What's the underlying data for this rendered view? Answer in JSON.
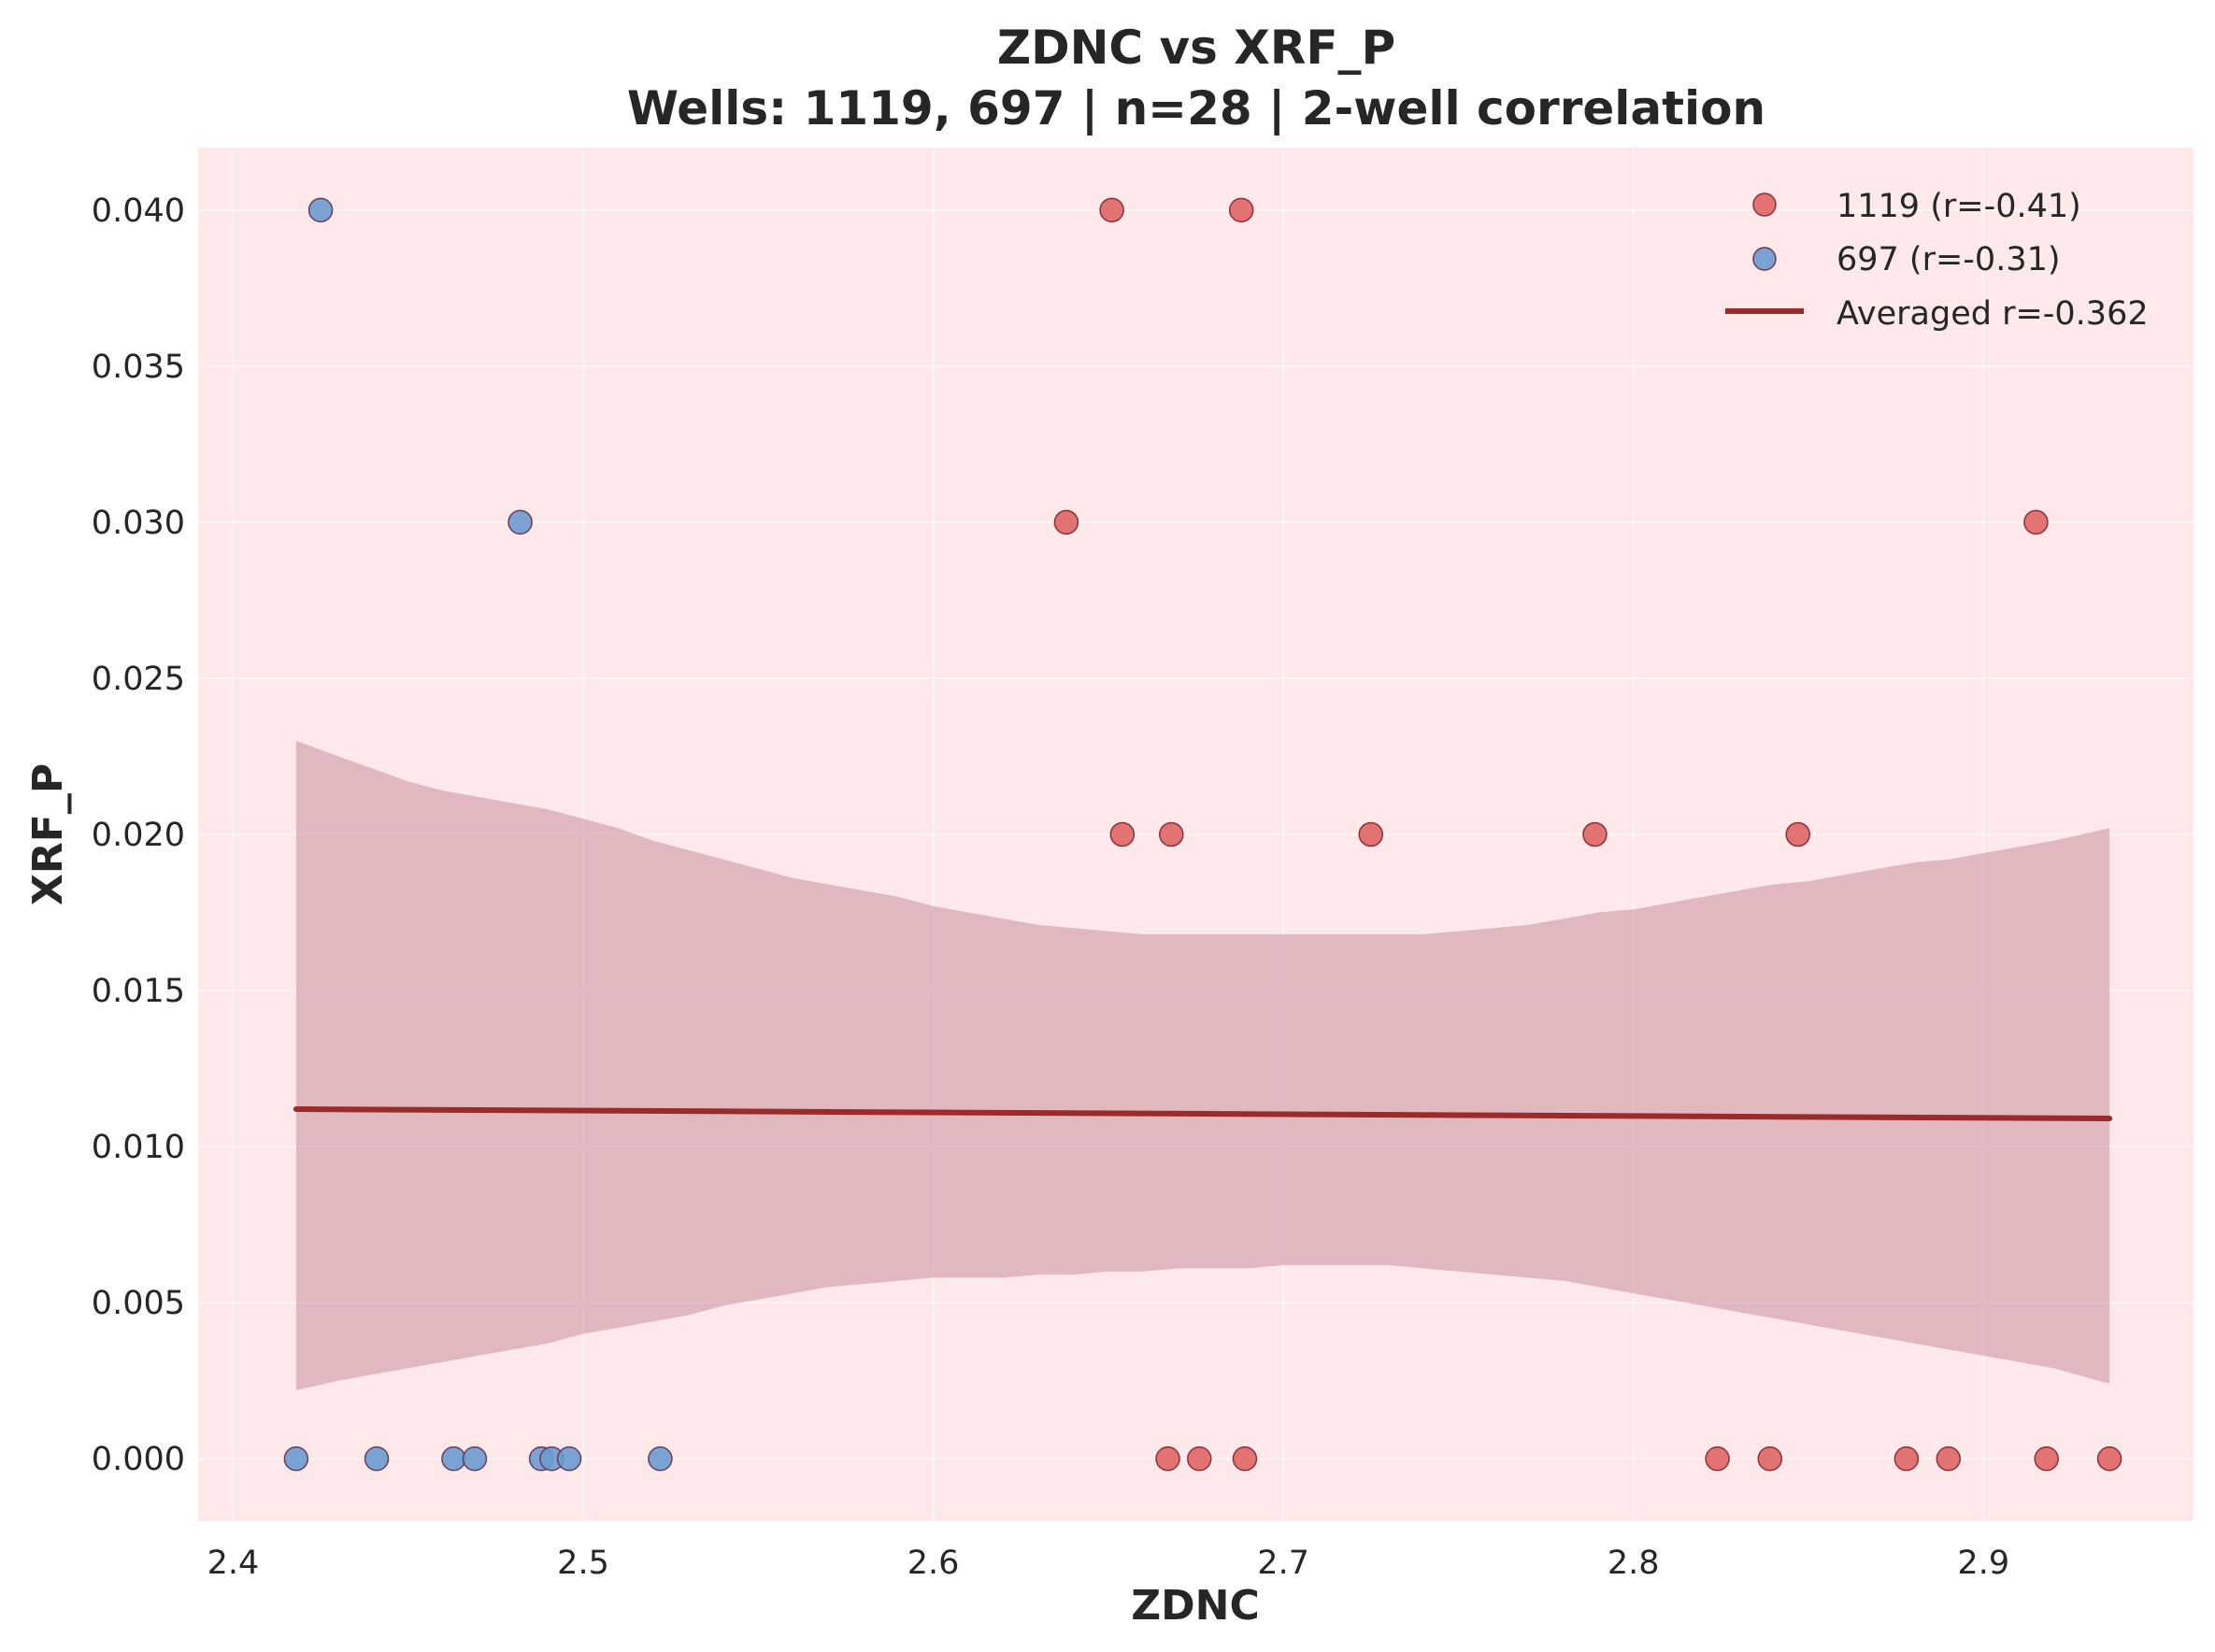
{
  "chart_data": {
    "type": "scatter",
    "title": "ZDNC vs XRF_P",
    "subtitle": "Wells: 1119, 697 | n=28 | 2-well correlation",
    "xlabel": "ZDNC",
    "ylabel": "XRF_P",
    "xlim": [
      2.39,
      2.96
    ],
    "ylim": [
      -0.002,
      0.042
    ],
    "x_ticks": [
      "2.4",
      "2.5",
      "2.6",
      "2.7",
      "2.8",
      "2.9"
    ],
    "x_tick_values": [
      2.4,
      2.5,
      2.6,
      2.7,
      2.8,
      2.9
    ],
    "y_ticks": [
      "0.000",
      "0.005",
      "0.010",
      "0.015",
      "0.020",
      "0.025",
      "0.030",
      "0.035",
      "0.040"
    ],
    "y_tick_values": [
      0.0,
      0.005,
      0.01,
      0.015,
      0.02,
      0.025,
      0.03,
      0.035,
      0.04
    ],
    "grid": true,
    "legend_position": "top-right",
    "background_color": "#fde8ea",
    "series": [
      {
        "name": "1119 (r=-0.41)",
        "color": "#e06666",
        "edge_color": "#8b2e3a",
        "points": [
          {
            "x": 2.651,
            "y": 0.04
          },
          {
            "x": 2.688,
            "y": 0.04
          },
          {
            "x": 2.638,
            "y": 0.03
          },
          {
            "x": 2.915,
            "y": 0.03
          },
          {
            "x": 2.654,
            "y": 0.02
          },
          {
            "x": 2.668,
            "y": 0.02
          },
          {
            "x": 2.725,
            "y": 0.02
          },
          {
            "x": 2.789,
            "y": 0.02
          },
          {
            "x": 2.847,
            "y": 0.02
          },
          {
            "x": 2.667,
            "y": 0.0
          },
          {
            "x": 2.676,
            "y": 0.0
          },
          {
            "x": 2.689,
            "y": 0.0
          },
          {
            "x": 2.824,
            "y": 0.0
          },
          {
            "x": 2.839,
            "y": 0.0
          },
          {
            "x": 2.878,
            "y": 0.0
          },
          {
            "x": 2.89,
            "y": 0.0
          },
          {
            "x": 2.918,
            "y": 0.0
          },
          {
            "x": 2.936,
            "y": 0.0
          }
        ]
      },
      {
        "name": "697 (r=-0.31)",
        "color": "#6b9bd1",
        "edge_color": "#6a3a55",
        "points": [
          {
            "x": 2.425,
            "y": 0.04
          },
          {
            "x": 2.482,
            "y": 0.03
          },
          {
            "x": 2.418,
            "y": 0.0
          },
          {
            "x": 2.441,
            "y": 0.0
          },
          {
            "x": 2.463,
            "y": 0.0
          },
          {
            "x": 2.469,
            "y": 0.0
          },
          {
            "x": 2.488,
            "y": 0.0
          },
          {
            "x": 2.491,
            "y": 0.0
          },
          {
            "x": 2.496,
            "y": 0.0
          },
          {
            "x": 2.522,
            "y": 0.0
          }
        ]
      }
    ],
    "fit_line": {
      "name": "Averaged r=-0.362",
      "color": "#9b2a2a",
      "x": [
        2.418,
        2.936
      ],
      "y": [
        0.0112,
        0.0109
      ]
    },
    "confidence_band": {
      "color": "#d8a8b0",
      "x": [
        2.418,
        2.43,
        2.44,
        2.45,
        2.46,
        2.47,
        2.48,
        2.49,
        2.5,
        2.51,
        2.52,
        2.53,
        2.54,
        2.55,
        2.56,
        2.57,
        2.58,
        2.59,
        2.6,
        2.61,
        2.62,
        2.63,
        2.64,
        2.65,
        2.66,
        2.67,
        2.68,
        2.69,
        2.7,
        2.71,
        2.72,
        2.73,
        2.74,
        2.75,
        2.76,
        2.77,
        2.78,
        2.79,
        2.8,
        2.81,
        2.82,
        2.83,
        2.84,
        2.85,
        2.86,
        2.87,
        2.88,
        2.89,
        2.9,
        2.91,
        2.92,
        2.936
      ],
      "upper": [
        0.023,
        0.0225,
        0.0221,
        0.0217,
        0.0214,
        0.0212,
        0.021,
        0.0208,
        0.0205,
        0.0202,
        0.0198,
        0.0195,
        0.0192,
        0.0189,
        0.0186,
        0.0184,
        0.0182,
        0.018,
        0.0177,
        0.0175,
        0.0173,
        0.0171,
        0.017,
        0.0169,
        0.0168,
        0.0168,
        0.0168,
        0.0168,
        0.0168,
        0.0168,
        0.0168,
        0.0168,
        0.0168,
        0.0169,
        0.017,
        0.0171,
        0.0173,
        0.0175,
        0.0176,
        0.0178,
        0.018,
        0.0182,
        0.0184,
        0.0185,
        0.0187,
        0.0189,
        0.0191,
        0.0192,
        0.0194,
        0.0196,
        0.0198,
        0.0202
      ],
      "lower": [
        0.0022,
        0.0025,
        0.0027,
        0.0029,
        0.0031,
        0.0033,
        0.0035,
        0.0037,
        0.004,
        0.0042,
        0.0044,
        0.0046,
        0.0049,
        0.0051,
        0.0053,
        0.0055,
        0.0056,
        0.0057,
        0.0058,
        0.0058,
        0.0058,
        0.0059,
        0.0059,
        0.006,
        0.006,
        0.0061,
        0.0061,
        0.0061,
        0.0062,
        0.0062,
        0.0062,
        0.0062,
        0.0061,
        0.006,
        0.0059,
        0.0058,
        0.0057,
        0.0055,
        0.0053,
        0.0051,
        0.0049,
        0.0047,
        0.0045,
        0.0043,
        0.0041,
        0.0039,
        0.0037,
        0.0035,
        0.0033,
        0.0031,
        0.0029,
        0.0024
      ]
    }
  }
}
